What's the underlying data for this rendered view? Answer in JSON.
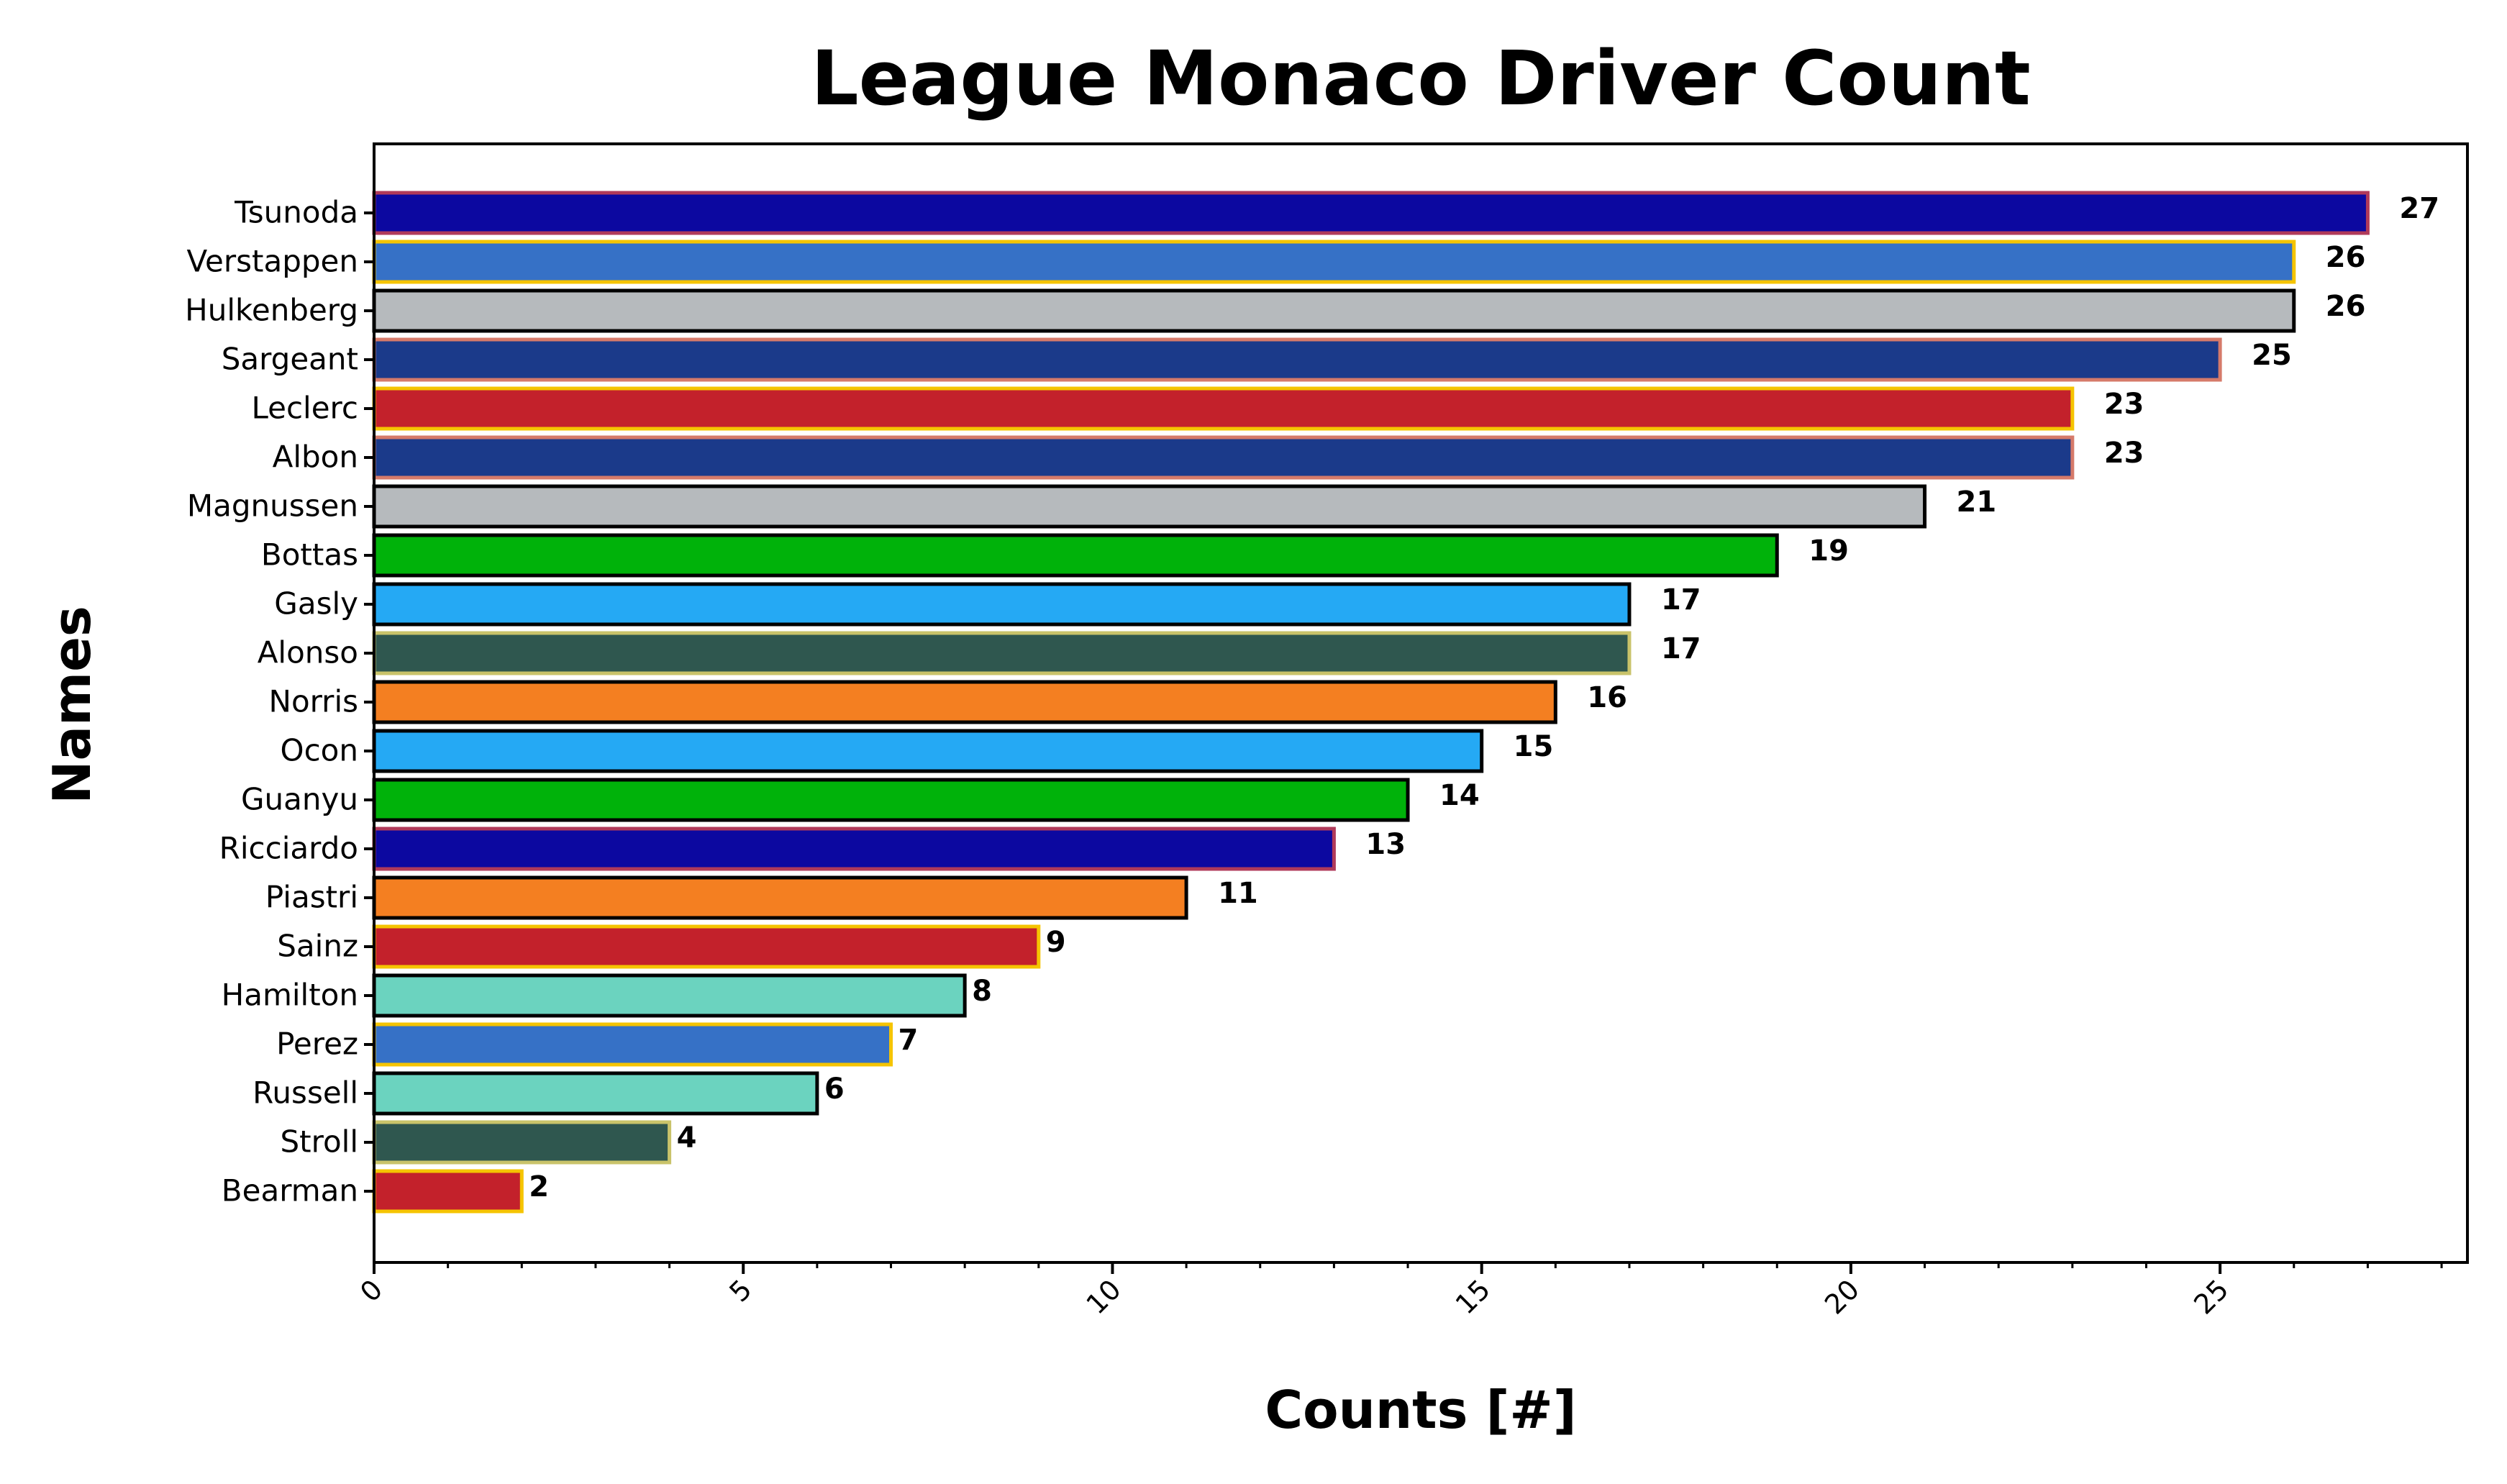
{
  "chart_data": {
    "type": "bar",
    "orientation": "horizontal",
    "title": "League Monaco Driver Count",
    "xlabel": "Counts [#]",
    "ylabel": "Names",
    "xlim": [
      0,
      28.35
    ],
    "xticks": [
      "0",
      "5",
      "10",
      "15",
      "20",
      "25"
    ],
    "grid": false,
    "legend": "none",
    "categories": [
      "Tsunoda",
      "Verstappen",
      "Hulkenberg",
      "Sargeant",
      "Leclerc",
      "Albon",
      "Magnussen",
      "Bottas",
      "Gasly",
      "Alonso",
      "Norris",
      "Ocon",
      "Guanyu",
      "Ricciardo",
      "Piastri",
      "Sainz",
      "Hamilton",
      "Perez",
      "Russell",
      "Stroll",
      "Bearman"
    ],
    "values": [
      27,
      26,
      26,
      25,
      23,
      23,
      21,
      19,
      17,
      17,
      16,
      15,
      14,
      13,
      11,
      9,
      8,
      7,
      6,
      4,
      2
    ],
    "value_labels": [
      "27",
      "26",
      "26",
      "25",
      "23",
      "23",
      "21",
      "19",
      "17",
      "17",
      "16",
      "15",
      "14",
      "13",
      "11",
      "9",
      "8",
      "7",
      "6",
      "4",
      "2"
    ],
    "bar_colors": [
      "#0c08a0",
      "#3671c6",
      "#b6babd",
      "#1b3a8a",
      "#c3212b",
      "#1b3a8a",
      "#b6babd",
      "#00b20a",
      "#25a9f4",
      "#2f574f",
      "#f47f21",
      "#25a9f4",
      "#00b20a",
      "#0c08a0",
      "#f47f21",
      "#c3212b",
      "#6bd3bf",
      "#3671c6",
      "#6bd3bf",
      "#2f574f",
      "#c3212b"
    ],
    "edge_colors": [
      "#b03a5a",
      "#f5c400",
      "#000000",
      "#d67a6a",
      "#f5c400",
      "#d67a6a",
      "#000000",
      "#000000",
      "#000000",
      "#c9c36a",
      "#000000",
      "#000000",
      "#000000",
      "#b03a5a",
      "#000000",
      "#f5c400",
      "#000000",
      "#f5c400",
      "#000000",
      "#c9c36a",
      "#f5c400"
    ]
  }
}
